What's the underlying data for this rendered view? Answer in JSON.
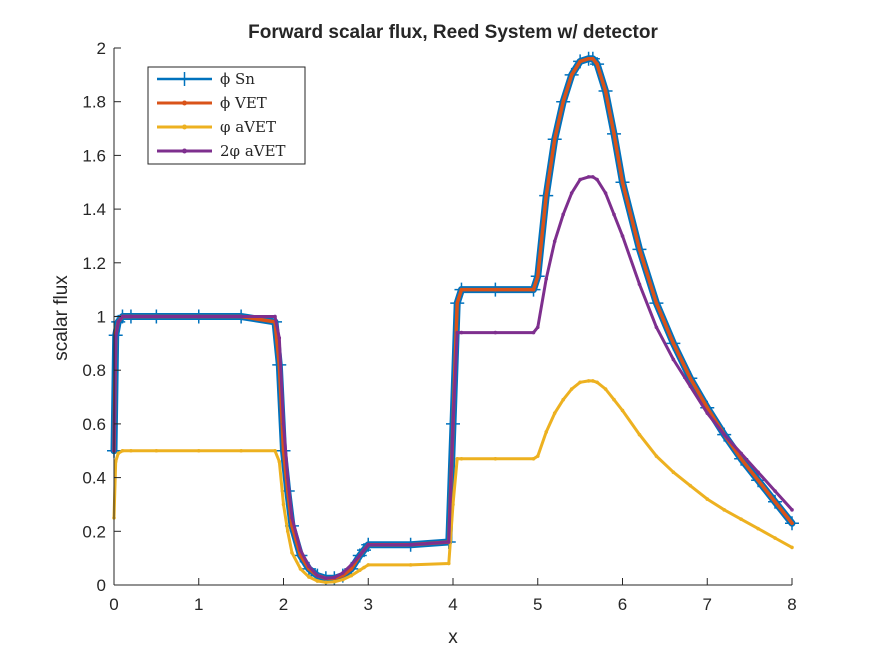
{
  "chart_data": {
    "type": "line",
    "title": "Forward scalar flux, Reed System w/ detector",
    "xlabel": "x",
    "ylabel": "scalar flux",
    "xlim": [
      0,
      8
    ],
    "ylim": [
      0,
      2
    ],
    "xticks": [
      "0",
      "1",
      "2",
      "3",
      "4",
      "5",
      "6",
      "7",
      "8"
    ],
    "yticks": [
      "0",
      "0.2",
      "0.4",
      "0.6",
      "0.8",
      "1",
      "1.2",
      "1.4",
      "1.6",
      "1.8",
      "2"
    ],
    "grid": false,
    "legend_position": "top-left",
    "series": [
      {
        "name": "ϕ Sn",
        "color": "#0072BD",
        "marker": "plus",
        "x": [
          0,
          0.02,
          0.05,
          0.1,
          0.2,
          0.5,
          1.0,
          1.5,
          1.9,
          1.95,
          2.0,
          2.05,
          2.1,
          2.2,
          2.3,
          2.4,
          2.5,
          2.6,
          2.7,
          2.8,
          2.9,
          2.95,
          3.0,
          3.5,
          3.95,
          4.0,
          4.05,
          4.1,
          4.5,
          4.95,
          5.0,
          5.1,
          5.2,
          5.3,
          5.4,
          5.5,
          5.6,
          5.65,
          5.7,
          5.8,
          5.9,
          6.0,
          6.2,
          6.4,
          6.6,
          6.8,
          7.0,
          7.2,
          7.4,
          7.6,
          7.8,
          8.0
        ],
        "y": [
          0.5,
          0.93,
          0.98,
          1.0,
          1.0,
          1.0,
          1.0,
          1.0,
          0.98,
          0.82,
          0.5,
          0.35,
          0.22,
          0.11,
          0.06,
          0.035,
          0.025,
          0.025,
          0.035,
          0.06,
          0.11,
          0.13,
          0.15,
          0.15,
          0.16,
          0.6,
          1.05,
          1.1,
          1.1,
          1.1,
          1.15,
          1.45,
          1.66,
          1.8,
          1.9,
          1.95,
          1.96,
          1.96,
          1.94,
          1.84,
          1.68,
          1.5,
          1.25,
          1.05,
          0.9,
          0.77,
          0.66,
          0.56,
          0.47,
          0.39,
          0.31,
          0.23
        ]
      },
      {
        "name": "ϕ VET",
        "color": "#D95319",
        "marker": "dot",
        "x": [
          0,
          0.02,
          0.05,
          0.1,
          0.2,
          0.5,
          1.0,
          1.5,
          1.9,
          1.95,
          2.0,
          2.05,
          2.1,
          2.2,
          2.3,
          2.4,
          2.5,
          2.6,
          2.7,
          2.8,
          2.9,
          2.95,
          3.0,
          3.5,
          3.95,
          4.0,
          4.05,
          4.1,
          4.5,
          4.95,
          5.0,
          5.1,
          5.2,
          5.3,
          5.4,
          5.5,
          5.6,
          5.65,
          5.7,
          5.8,
          5.9,
          6.0,
          6.2,
          6.4,
          6.6,
          6.8,
          7.0,
          7.2,
          7.4,
          7.6,
          7.8,
          8.0
        ],
        "y": [
          0.5,
          0.93,
          0.98,
          1.0,
          1.0,
          1.0,
          1.0,
          1.0,
          0.98,
          0.82,
          0.5,
          0.35,
          0.22,
          0.11,
          0.06,
          0.035,
          0.025,
          0.025,
          0.035,
          0.06,
          0.11,
          0.13,
          0.15,
          0.15,
          0.16,
          0.6,
          1.05,
          1.1,
          1.1,
          1.1,
          1.15,
          1.45,
          1.66,
          1.8,
          1.9,
          1.95,
          1.96,
          1.96,
          1.94,
          1.84,
          1.68,
          1.5,
          1.25,
          1.05,
          0.9,
          0.77,
          0.66,
          0.56,
          0.47,
          0.39,
          0.31,
          0.23
        ]
      },
      {
        "name": "φ aVET",
        "color": "#EDB120",
        "marker": "dot",
        "x": [
          0,
          0.02,
          0.05,
          0.1,
          0.2,
          0.5,
          1.0,
          1.5,
          1.9,
          1.95,
          2.0,
          2.05,
          2.1,
          2.2,
          2.3,
          2.4,
          2.5,
          2.6,
          2.7,
          2.8,
          2.9,
          2.95,
          3.0,
          3.5,
          3.95,
          4.0,
          4.05,
          4.1,
          4.5,
          4.95,
          5.0,
          5.1,
          5.2,
          5.3,
          5.4,
          5.5,
          5.6,
          5.65,
          5.7,
          5.8,
          5.9,
          6.0,
          6.2,
          6.4,
          6.6,
          6.8,
          7.0,
          7.2,
          7.4,
          7.6,
          7.8,
          8.0
        ],
        "y": [
          0.25,
          0.46,
          0.49,
          0.5,
          0.5,
          0.5,
          0.5,
          0.5,
          0.5,
          0.46,
          0.3,
          0.2,
          0.12,
          0.06,
          0.03,
          0.015,
          0.01,
          0.012,
          0.02,
          0.035,
          0.055,
          0.065,
          0.075,
          0.075,
          0.08,
          0.3,
          0.47,
          0.47,
          0.47,
          0.47,
          0.48,
          0.57,
          0.64,
          0.69,
          0.73,
          0.755,
          0.76,
          0.76,
          0.755,
          0.73,
          0.69,
          0.65,
          0.56,
          0.48,
          0.42,
          0.37,
          0.32,
          0.28,
          0.245,
          0.21,
          0.175,
          0.14
        ]
      },
      {
        "name": "2φ aVET",
        "color": "#7E2F8E",
        "marker": "dot",
        "x": [
          0,
          0.02,
          0.05,
          0.1,
          0.2,
          0.5,
          1.0,
          1.5,
          1.9,
          1.95,
          2.0,
          2.05,
          2.1,
          2.2,
          2.3,
          2.4,
          2.5,
          2.6,
          2.7,
          2.8,
          2.9,
          2.95,
          3.0,
          3.5,
          3.95,
          4.0,
          4.05,
          4.1,
          4.5,
          4.95,
          5.0,
          5.1,
          5.2,
          5.3,
          5.4,
          5.5,
          5.6,
          5.65,
          5.7,
          5.8,
          5.9,
          6.0,
          6.2,
          6.4,
          6.6,
          6.8,
          7.0,
          7.2,
          7.4,
          7.6,
          7.8,
          8.0
        ],
        "y": [
          0.5,
          0.92,
          0.98,
          1.0,
          1.0,
          1.0,
          1.0,
          1.0,
          1.0,
          0.92,
          0.6,
          0.4,
          0.25,
          0.13,
          0.07,
          0.035,
          0.025,
          0.028,
          0.045,
          0.075,
          0.11,
          0.13,
          0.15,
          0.15,
          0.16,
          0.6,
          0.94,
          0.94,
          0.94,
          0.94,
          0.96,
          1.14,
          1.28,
          1.38,
          1.46,
          1.51,
          1.52,
          1.52,
          1.51,
          1.46,
          1.38,
          1.3,
          1.12,
          0.96,
          0.84,
          0.74,
          0.64,
          0.56,
          0.49,
          0.42,
          0.35,
          0.28
        ]
      }
    ]
  }
}
